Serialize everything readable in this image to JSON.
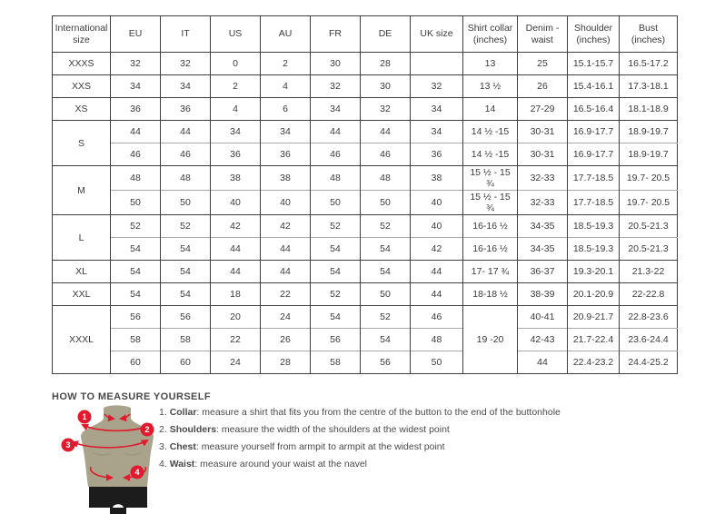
{
  "table": {
    "columns": [
      "International size",
      "EU",
      "IT",
      "US",
      "AU",
      "FR",
      "DE",
      "UK size",
      "Shirt collar (inches)",
      "Denim - waist",
      "Shoulder (inches)",
      "Bust (inches)"
    ],
    "groups": [
      {
        "size": "XXXS",
        "rows": [
          [
            "32",
            "32",
            "0",
            "2",
            "30",
            "28",
            "",
            "13",
            "25",
            "15.1-15.7",
            "16.5-17.2"
          ]
        ]
      },
      {
        "size": "XXS",
        "rows": [
          [
            "34",
            "34",
            "2",
            "4",
            "32",
            "30",
            "32",
            "13 ½",
            "26",
            "15.4-16.1",
            "17.3-18.1"
          ]
        ]
      },
      {
        "size": "XS",
        "rows": [
          [
            "36",
            "36",
            "4",
            "6",
            "34",
            "32",
            "34",
            "14",
            "27-29",
            "16.5-16.4",
            "18.1-18.9"
          ]
        ]
      },
      {
        "size": "S",
        "rows": [
          [
            "44",
            "44",
            "34",
            "34",
            "44",
            "44",
            "34",
            "14 ½ -15",
            "30-31",
            "16.9-17.7",
            "18.9-19.7"
          ],
          [
            "46",
            "46",
            "36",
            "36",
            "46",
            "46",
            "36",
            "14 ½ -15",
            "30-31",
            "16.9-17.7",
            "18.9-19.7"
          ]
        ]
      },
      {
        "size": "M",
        "rows": [
          [
            "48",
            "48",
            "38",
            "38",
            "48",
            "48",
            "38",
            "15 ½ - 15 ¾",
            "32-33",
            "17.7-18.5",
            "19.7- 20.5"
          ],
          [
            "50",
            "50",
            "40",
            "40",
            "50",
            "50",
            "40",
            "15 ½ - 15 ¾",
            "32-33",
            "17.7-18.5",
            "19.7- 20.5"
          ]
        ]
      },
      {
        "size": "L",
        "rows": [
          [
            "52",
            "52",
            "42",
            "42",
            "52",
            "52",
            "40",
            "16-16 ½",
            "34-35",
            "18.5-19.3",
            "20.5-21.3"
          ],
          [
            "54",
            "54",
            "44",
            "44",
            "54",
            "54",
            "42",
            "16-16 ½",
            "34-35",
            "18.5-19.3",
            "20.5-21.3"
          ]
        ]
      },
      {
        "size": "XL",
        "rows": [
          [
            "54",
            "54",
            "44",
            "44",
            "54",
            "54",
            "44",
            "17- 17 ¾",
            "36-37",
            "19.3-20.1",
            "21.3-22"
          ]
        ]
      },
      {
        "size": "XXL",
        "rows": [
          [
            "54",
            "54",
            "18",
            "22",
            "52",
            "50",
            "44",
            "18-18 ½",
            "38-39",
            "20.1-20.9",
            "22-22.8"
          ]
        ]
      },
      {
        "size": "XXXL",
        "merged_collar": "19 -20",
        "rows": [
          [
            "56",
            "56",
            "20",
            "24",
            "54",
            "52",
            "46",
            null,
            "40-41",
            "20.9-21.7",
            "22.8-23.6"
          ],
          [
            "58",
            "58",
            "22",
            "26",
            "56",
            "54",
            "48",
            null,
            "42-43",
            "21.7-22.4",
            "23.6-24.4"
          ],
          [
            "60",
            "60",
            "24",
            "28",
            "58",
            "56",
            "50",
            null,
            "44",
            "22.4-23.2",
            "24.4-25.2"
          ]
        ]
      }
    ]
  },
  "measure": {
    "title": "HOW TO MEASURE YOURSELF",
    "items": [
      {
        "num": "1.",
        "label": "Collar",
        "text": ": measure a shirt that fits you from the centre of the button to the end of the buttonhole"
      },
      {
        "num": "2.",
        "label": "Shoulders",
        "text": ": measure the width of the shoulders at the widest point"
      },
      {
        "num": "3.",
        "label": "Chest",
        "text": ": measure yourself from armpit to armpit at the widest point"
      },
      {
        "num": "4.",
        "label": "Waist",
        "text": ": measure around your waist at the navel"
      }
    ],
    "badges": {
      "b1": "1",
      "b2": "2",
      "b3": "3",
      "b4": "4"
    }
  },
  "colors": {
    "accent_red": "#e01b2d",
    "mannequin": "#a9a38b",
    "mannequin_shadow": "#918c74",
    "shorts": "#1c1c1c",
    "border_dark": "#3f3f3f",
    "border_light": "#a9a9a9",
    "text": "#3f3f3f"
  }
}
